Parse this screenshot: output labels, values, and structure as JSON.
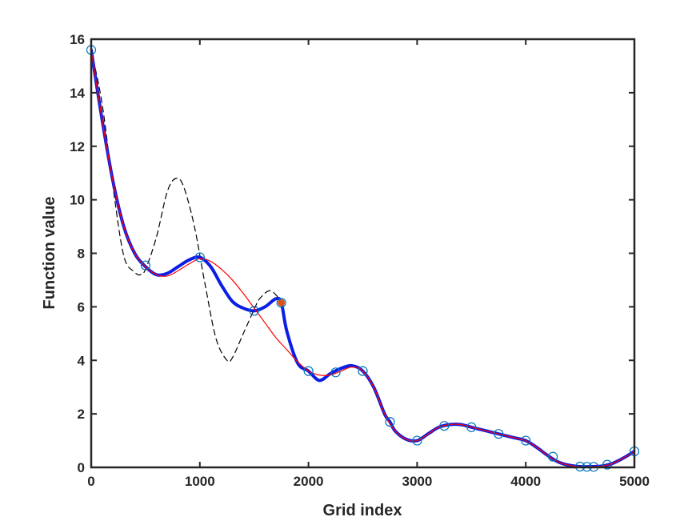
{
  "chart_data": {
    "type": "line",
    "title": "",
    "xlabel": "Grid index",
    "ylabel": "Function value",
    "xlim": [
      0,
      5000
    ],
    "ylim": [
      0,
      16
    ],
    "x_ticks": [
      0,
      1000,
      2000,
      3000,
      4000,
      5000
    ],
    "y_ticks": [
      0,
      2,
      4,
      6,
      8,
      10,
      12,
      14,
      16
    ],
    "grid": false,
    "legend": "none",
    "colors": {
      "blue_curve": "#0a1ee6",
      "red_curve": "#ff0000",
      "dashed_curve": "#000000",
      "markers": "#0072bd",
      "highlight_marker": "#d95319",
      "axes": "#262626"
    },
    "series": [
      {
        "style": "blue-thick",
        "x": [
          0,
          100,
          200,
          300,
          400,
          500,
          600,
          700,
          800,
          900,
          1000,
          1100,
          1200,
          1300,
          1400,
          1500,
          1600,
          1700,
          1750,
          1800,
          1900,
          2000,
          2100,
          2200,
          2300,
          2400,
          2500,
          2600,
          2700,
          2750,
          2800,
          2900,
          3000,
          3100,
          3200,
          3300,
          3400,
          3500,
          3600,
          3700,
          3750,
          3800,
          3900,
          4000,
          4100,
          4200,
          4300,
          4400,
          4500,
          4600,
          4700,
          4800,
          4900,
          5000
        ],
        "y": [
          15.6,
          13.0,
          10.7,
          9.0,
          8.0,
          7.5,
          7.2,
          7.25,
          7.5,
          7.75,
          7.85,
          7.5,
          6.8,
          6.2,
          5.95,
          5.85,
          6.0,
          6.3,
          6.15,
          5.1,
          3.9,
          3.6,
          3.25,
          3.5,
          3.7,
          3.8,
          3.6,
          3.0,
          2.0,
          1.7,
          1.35,
          1.05,
          1.0,
          1.25,
          1.5,
          1.6,
          1.6,
          1.5,
          1.4,
          1.3,
          1.25,
          1.2,
          1.1,
          1.0,
          0.75,
          0.45,
          0.2,
          0.08,
          0.03,
          0.03,
          0.05,
          0.15,
          0.35,
          0.6
        ]
      },
      {
        "style": "red-thin",
        "x": [
          0,
          100,
          200,
          300,
          400,
          500,
          600,
          700,
          800,
          900,
          1000,
          1100,
          1200,
          1300,
          1400,
          1500,
          1600,
          1700,
          1800,
          1900,
          2000,
          2100,
          2200,
          2300,
          2400,
          2500,
          2600,
          2700,
          2800,
          2900,
          3000,
          3100,
          3200,
          3300,
          3400,
          3500,
          3600,
          3700,
          3800,
          3900,
          4000,
          4100,
          4200,
          4300,
          4400,
          4500,
          4600,
          4700,
          4800,
          4900,
          5000
        ],
        "y": [
          15.6,
          13.0,
          10.7,
          9.0,
          8.0,
          7.5,
          7.2,
          7.15,
          7.35,
          7.6,
          7.8,
          7.7,
          7.4,
          7.0,
          6.5,
          5.95,
          5.4,
          4.85,
          4.4,
          3.95,
          3.6,
          3.45,
          3.45,
          3.6,
          3.75,
          3.6,
          3.0,
          2.0,
          1.35,
          1.05,
          1.0,
          1.25,
          1.5,
          1.6,
          1.6,
          1.5,
          1.4,
          1.3,
          1.2,
          1.1,
          1.0,
          0.75,
          0.45,
          0.2,
          0.08,
          0.03,
          0.03,
          0.05,
          0.15,
          0.35,
          0.6
        ]
      },
      {
        "style": "black-dashed",
        "x": [
          0,
          100,
          200,
          300,
          400,
          450,
          500,
          600,
          700,
          780,
          850,
          950,
          1050,
          1150,
          1250,
          1300,
          1400,
          1500,
          1550,
          1650,
          1750
        ],
        "y": [
          15.6,
          13.6,
          10.5,
          7.9,
          7.3,
          7.2,
          7.4,
          8.6,
          10.3,
          10.8,
          10.5,
          9.0,
          6.8,
          4.8,
          4.0,
          4.1,
          5.0,
          5.9,
          6.3,
          6.6,
          6.2
        ]
      }
    ],
    "markers": {
      "x": [
        0,
        500,
        1000,
        1500,
        1750,
        2000,
        2250,
        2500,
        2750,
        3000,
        3250,
        3500,
        3750,
        4000,
        4250,
        4500,
        4563,
        4625,
        4750,
        5000
      ],
      "y": [
        15.6,
        7.55,
        7.85,
        5.85,
        6.15,
        3.6,
        3.55,
        3.6,
        1.7,
        1.0,
        1.55,
        1.5,
        1.25,
        1.0,
        0.4,
        0.03,
        0.02,
        0.02,
        0.1,
        0.6
      ]
    },
    "highlight_point": {
      "x": 1750,
      "y": 6.15
    }
  }
}
